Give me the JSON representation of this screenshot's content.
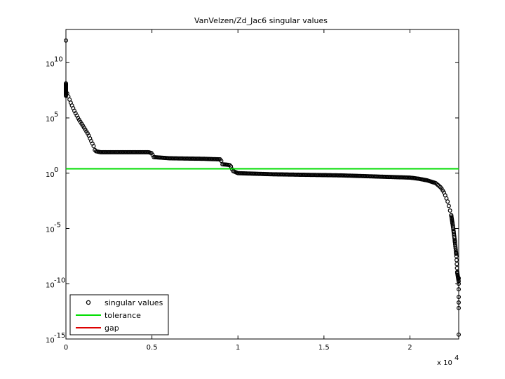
{
  "chart_data": {
    "type": "scatter",
    "title": "VanVelzen/Zd_Jac6 singular values",
    "xlabel": "",
    "ylabel": "",
    "y_scale": "log",
    "x_multiplier_label": "x 10",
    "x_multiplier_exp": "4",
    "xlim": [
      0,
      22835
    ],
    "ylim_exp": [
      -15,
      13
    ],
    "x_ticks": [
      {
        "value": 0,
        "label": "0"
      },
      {
        "value": 5000,
        "label": "0.5"
      },
      {
        "value": 10000,
        "label": "1"
      },
      {
        "value": 15000,
        "label": "1.5"
      },
      {
        "value": 20000,
        "label": "2"
      }
    ],
    "y_ticks": [
      {
        "exp": 10,
        "base": "10",
        "sup": "10"
      },
      {
        "exp": 5,
        "base": "10",
        "sup": "5"
      },
      {
        "exp": 0,
        "base": "10",
        "sup": "0"
      },
      {
        "exp": -5,
        "base": "10",
        "sup": "-5"
      },
      {
        "exp": -10,
        "base": "10",
        "sup": "-10"
      },
      {
        "exp": -15,
        "base": "10",
        "sup": "-15"
      }
    ],
    "series": [
      {
        "name": "singular values",
        "marker": "circle",
        "color": "#000000",
        "curve_x": [
          0,
          50,
          150,
          300,
          500,
          700,
          900,
          1100,
          1300,
          1500,
          1600,
          1700,
          2000,
          3000,
          4000,
          4500,
          4800,
          5000,
          5100,
          6000,
          8000,
          9000,
          9100,
          9500,
          9600,
          9700,
          10000,
          12000,
          14000,
          16000,
          18000,
          19000,
          20000,
          20500,
          21000,
          21500,
          21800,
          22000,
          22200,
          22400,
          22500,
          22600,
          22700,
          22750
        ],
        "curve_y_exp": [
          8.0,
          7.3,
          6.9,
          6.3,
          5.6,
          5.0,
          4.5,
          4.0,
          3.5,
          2.8,
          2.5,
          2.0,
          1.9,
          1.9,
          1.9,
          1.9,
          1.9,
          1.8,
          1.45,
          1.35,
          1.3,
          1.25,
          0.8,
          0.75,
          0.6,
          0.2,
          0.0,
          -0.1,
          -0.15,
          -0.2,
          -0.3,
          -0.35,
          -0.4,
          -0.5,
          -0.65,
          -0.9,
          -1.3,
          -1.8,
          -2.6,
          -3.8,
          -4.8,
          -6.0,
          -7.5,
          -9.0
        ],
        "outliers": [
          {
            "x": 0,
            "y_exp": 12.0
          },
          {
            "x": 22835,
            "y_exp": -9.5
          },
          {
            "x": 22835,
            "y_exp": -10.0
          },
          {
            "x": 22835,
            "y_exp": -10.5
          },
          {
            "x": 22835,
            "y_exp": -11.2
          },
          {
            "x": 22835,
            "y_exp": -11.7
          },
          {
            "x": 22835,
            "y_exp": -12.2
          },
          {
            "x": 22835,
            "y_exp": -14.6
          }
        ]
      },
      {
        "name": "tolerance",
        "color": "#00dd00",
        "y_exp": 0.4
      },
      {
        "name": "gap",
        "color": "#dd0000"
      }
    ],
    "legend_placement": "bottom-left",
    "grid": false
  }
}
